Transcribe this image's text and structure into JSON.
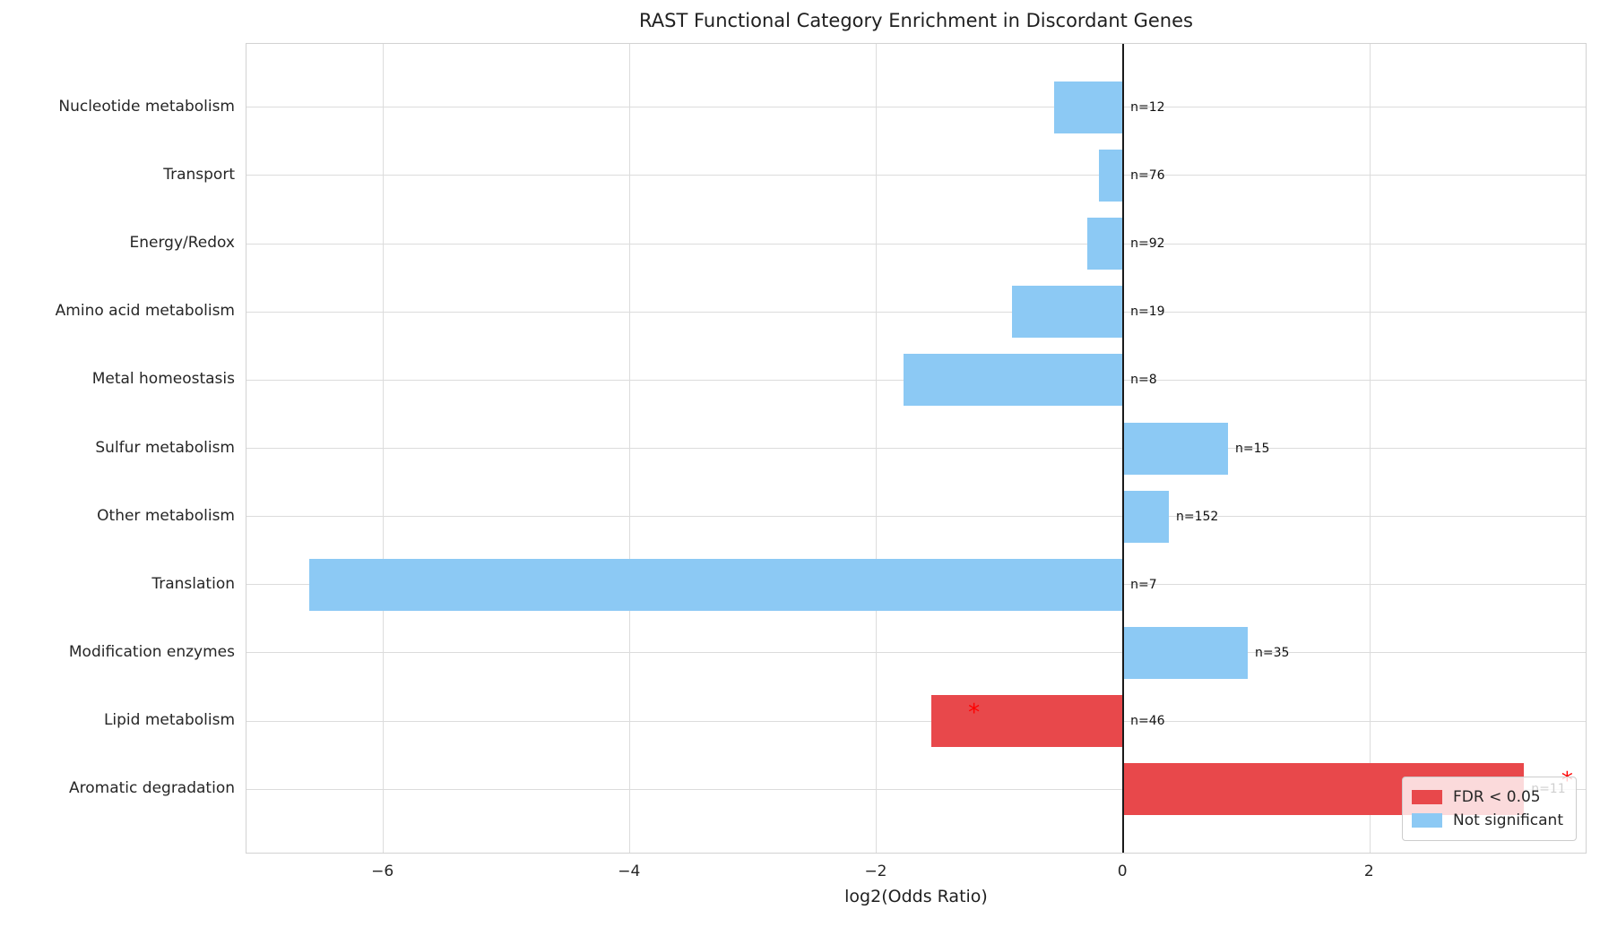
{
  "chart_data": {
    "type": "bar",
    "orientation": "horizontal",
    "title": "RAST Functional Category Enrichment in Discordant Genes",
    "xlabel": "log2(Odds Ratio)",
    "xlim": [
      -7.11,
      3.75
    ],
    "x_ticks": [
      -6,
      -4,
      -2,
      0,
      2
    ],
    "x_tick_labels": [
      "−6",
      "−4",
      "−2",
      "0",
      "2"
    ],
    "grid": true,
    "zero_line": true,
    "categories": [
      "Nucleotide metabolism",
      "Transport",
      "Energy/Redox",
      "Amino acid metabolism",
      "Metal homeostasis",
      "Sulfur metabolism",
      "Other metabolism",
      "Translation",
      "Modification enzymes",
      "Lipid metabolism",
      "Aromatic degradation"
    ],
    "values": [
      -0.56,
      -0.2,
      -0.29,
      -0.9,
      -1.78,
      0.85,
      0.37,
      -6.6,
      1.01,
      -1.56,
      3.25
    ],
    "count_labels": [
      "n=12",
      "n=76",
      "n=92",
      "n=19",
      "n=8",
      "n=15",
      "n=152",
      "n=7",
      "n=35",
      "n=46",
      "n=11"
    ],
    "significant": [
      false,
      false,
      false,
      false,
      false,
      false,
      false,
      false,
      false,
      true,
      true
    ],
    "sig_marker": {
      "symbol": "*",
      "color": "#FF0000",
      "x_offset": 0.35
    },
    "colors": {
      "significant": "#E8484B",
      "not_significant": "#8CC9F4"
    },
    "legend": {
      "position": "lower-right",
      "items": [
        {
          "label": "FDR < 0.05",
          "color_key": "significant"
        },
        {
          "label": "Not significant",
          "color_key": "not_significant"
        }
      ]
    }
  }
}
